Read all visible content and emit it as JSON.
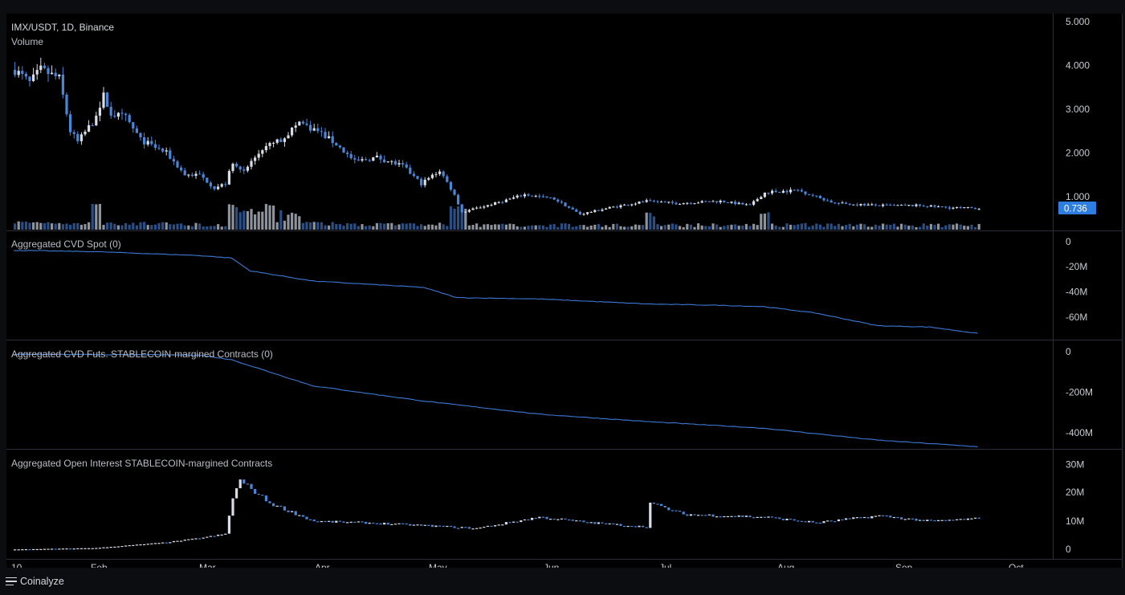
{
  "header": {
    "symbol_line": "IMX/USDT, 1D, Binance",
    "volume_label": "Volume"
  },
  "price": {
    "last_value": "0.736",
    "badge_color": "#2d7ee0"
  },
  "colors": {
    "up": "#d9dde6",
    "down": "#4a86d8",
    "line": "#3b79d4",
    "volume_up": "#8e929b",
    "volume_down": "#2a4f86"
  },
  "panes": {
    "cvd_spot_title": "Aggregated CVD Spot (0)",
    "cvd_futs_title": "Aggregated CVD Futs. STABLECOIN-margined Contracts (0)",
    "oi_title": "Aggregated Open Interest STABLECOIN-margined Contracts"
  },
  "axes": {
    "price_ticks": [
      "5.000",
      "4.000",
      "3.000",
      "2.000",
      "1.000"
    ],
    "cvd_spot_ticks": [
      "0",
      "-20M",
      "-40M",
      "-60M"
    ],
    "cvd_futs_ticks": [
      "0",
      "-200M",
      "-400M"
    ],
    "oi_ticks": [
      "30M",
      "20M",
      "10M",
      "0"
    ],
    "time_ticks": [
      "10",
      "Feb",
      "Mar",
      "Apr",
      "May",
      "Jun",
      "Jul",
      "Aug",
      "Sep",
      "Oct"
    ]
  },
  "footer": {
    "brand": "Coinalyze",
    "menu_icon": "hamburger-menu-icon"
  },
  "chart_data": [
    {
      "type": "candlestick",
      "title": "IMX/USDT, 1D, Binance",
      "x_range": [
        "Jan 10",
        "Sep 28"
      ],
      "ylim": [
        0,
        5
      ],
      "anchors": [
        {
          "date": "Jan 10",
          "close": 3.9
        },
        {
          "date": "Jan 14",
          "close": 3.6
        },
        {
          "date": "Jan 17",
          "close": 3.9
        },
        {
          "date": "Jan 22",
          "close": 3.7
        },
        {
          "date": "Jan 25",
          "close": 2.5
        },
        {
          "date": "Jan 27",
          "close": 2.25
        },
        {
          "date": "Jan 31",
          "close": 2.7
        },
        {
          "date": "Feb 3",
          "close": 3.3
        },
        {
          "date": "Feb 5",
          "close": 2.9
        },
        {
          "date": "Feb 9",
          "close": 2.8
        },
        {
          "date": "Feb 13",
          "close": 2.3
        },
        {
          "date": "Feb 20",
          "close": 2.0
        },
        {
          "date": "Feb 25",
          "close": 1.5
        },
        {
          "date": "Mar 1",
          "close": 1.5
        },
        {
          "date": "Mar 5",
          "close": 1.2
        },
        {
          "date": "Mar 8",
          "close": 1.3
        },
        {
          "date": "Mar 10",
          "close": 1.8
        },
        {
          "date": "Mar 13",
          "close": 1.6
        },
        {
          "date": "Mar 18",
          "close": 2.1
        },
        {
          "date": "Mar 23",
          "close": 2.3
        },
        {
          "date": "Mar 28",
          "close": 2.7
        },
        {
          "date": "Apr 2",
          "close": 2.5
        },
        {
          "date": "Apr 7",
          "close": 2.2
        },
        {
          "date": "Apr 12",
          "close": 1.8
        },
        {
          "date": "Apr 18",
          "close": 1.9
        },
        {
          "date": "Apr 25",
          "close": 1.7
        },
        {
          "date": "Apr 30",
          "close": 1.3
        },
        {
          "date": "May 5",
          "close": 1.6
        },
        {
          "date": "May 9",
          "close": 1.05
        },
        {
          "date": "May 11",
          "close": 0.65
        },
        {
          "date": "May 20",
          "close": 0.85
        },
        {
          "date": "May 28",
          "close": 1.05
        },
        {
          "date": "Jun 5",
          "close": 0.95
        },
        {
          "date": "Jun 12",
          "close": 0.6
        },
        {
          "date": "Jun 20",
          "close": 0.75
        },
        {
          "date": "Jun 30",
          "close": 0.9
        },
        {
          "date": "Jul 8",
          "close": 0.85
        },
        {
          "date": "Jul 20",
          "close": 0.9
        },
        {
          "date": "Jul 28",
          "close": 0.8
        },
        {
          "date": "Aug 1",
          "close": 1.1
        },
        {
          "date": "Aug 10",
          "close": 1.15
        },
        {
          "date": "Aug 15",
          "close": 1.0
        },
        {
          "date": "Aug 20",
          "close": 0.85
        },
        {
          "date": "Sep 1",
          "close": 0.8
        },
        {
          "date": "Sep 12",
          "close": 0.8
        },
        {
          "date": "Sep 20",
          "close": 0.75
        },
        {
          "date": "Sep 28",
          "close": 0.736
        }
      ]
    },
    {
      "type": "bar",
      "title": "Volume",
      "note": "relative volume, peaks around Mar 9-13, Mar 14-23, May 9-12, Aug 1"
    },
    {
      "type": "line",
      "title": "Aggregated CVD Spot (0)",
      "ylim": [
        -72,
        5
      ],
      "unit": "M",
      "x": [
        "Jan 10",
        "Feb 1",
        "Mar 1",
        "Mar 10",
        "Mar 15",
        "Apr 1",
        "May 1",
        "May 10",
        "Jun 1",
        "Jul 1",
        "Jul 20",
        "Aug 1",
        "Aug 15",
        "Sep 1",
        "Sep 15",
        "Sep 28"
      ],
      "values": [
        -4,
        -5,
        -8,
        -10,
        -20,
        -28,
        -33,
        -41,
        -42,
        -46,
        -47,
        -48,
        -53,
        -63,
        -64,
        -69
      ]
    },
    {
      "type": "line",
      "title": "Aggregated CVD Futs. STABLECOIN-margined Contracts (0)",
      "ylim": [
        -440,
        20
      ],
      "unit": "M",
      "x": [
        "Jan 10",
        "Mar 1",
        "Mar 10",
        "Apr 1",
        "May 1",
        "Jun 1",
        "Jul 1",
        "Aug 1",
        "Sep 1",
        "Sep 28"
      ],
      "values": [
        -5,
        -8,
        -30,
        -150,
        -220,
        -280,
        -315,
        -345,
        -400,
        -430
      ]
    },
    {
      "type": "candlestick",
      "title": "Aggregated Open Interest STABLECOIN-margined Contracts",
      "ylim": [
        0,
        32
      ],
      "unit": "M",
      "x": [
        "Jan 10",
        "Feb 1",
        "Feb 20",
        "Mar 1",
        "Mar 8",
        "Mar 10",
        "Mar 12",
        "Mar 20",
        "Apr 1",
        "Apr 15",
        "May 1",
        "May 15",
        "Jun 1",
        "Jun 15",
        "Jun 30",
        "Jul 1",
        "Jul 10",
        "Aug 1",
        "Aug 15",
        "Sep 1",
        "Sep 15",
        "Sep 28"
      ],
      "values": [
        0.5,
        1.0,
        3.0,
        4.5,
        6.0,
        19.0,
        25.0,
        17.0,
        10.5,
        10.0,
        9.0,
        8.0,
        12.0,
        10.0,
        8.5,
        17.0,
        13.0,
        12.0,
        10.0,
        12.5,
        10.5,
        11.5
      ]
    }
  ]
}
